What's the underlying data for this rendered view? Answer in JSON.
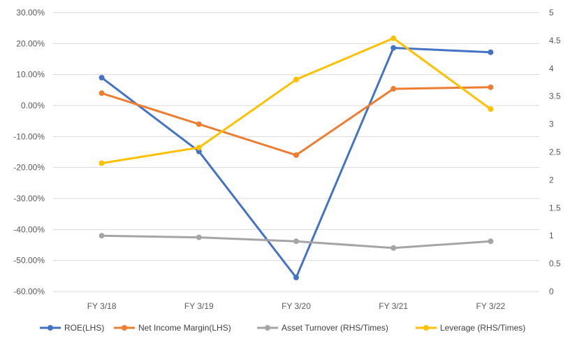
{
  "chart_data": {
    "type": "line",
    "categories": [
      "FY 3/18",
      "FY 3/19",
      "FY 3/20",
      "FY 3/21",
      "FY 3/22"
    ],
    "left_axis": {
      "ylim": [
        -60,
        30
      ],
      "ticks": [
        30,
        20,
        10,
        0,
        -10,
        -20,
        -30,
        -40,
        -50,
        -60
      ],
      "tick_labels": [
        "30.00%",
        "20.00%",
        "10.00%",
        "0.00%",
        "-10.00%",
        "-20.00%",
        "-30.00%",
        "-40.00%",
        "-50.00%",
        "-60.00%"
      ]
    },
    "right_axis": {
      "ylim": [
        0,
        5
      ],
      "ticks": [
        5,
        4.5,
        4,
        3.5,
        3,
        2.5,
        2,
        1.5,
        1,
        0.5,
        0
      ],
      "tick_labels": [
        "5",
        "4.5",
        "4",
        "3.5",
        "3",
        "2.5",
        "2",
        "1.5",
        "1",
        "0.5",
        "0"
      ]
    },
    "series": [
      {
        "name": "ROE(LHS)",
        "axis": "left",
        "color": "#4472C4",
        "values": [
          9.0,
          -14.8,
          -55.5,
          18.6,
          17.2
        ]
      },
      {
        "name": "Net Income Margin(LHS)",
        "axis": "left",
        "color": "#ED7D31",
        "values": [
          4.0,
          -6.0,
          -16.0,
          5.4,
          5.9
        ]
      },
      {
        "name": "Asset Turnover (RHS/Times)",
        "axis": "right",
        "color": "#A5A5A5",
        "values": [
          1.0,
          0.97,
          0.9,
          0.78,
          0.9
        ]
      },
      {
        "name": "Leverage (RHS/Times)",
        "axis": "right",
        "color": "#FFC000",
        "values": [
          2.3,
          2.58,
          3.8,
          4.54,
          3.27
        ]
      }
    ],
    "grid": "horizontal",
    "legend_position": "bottom"
  }
}
